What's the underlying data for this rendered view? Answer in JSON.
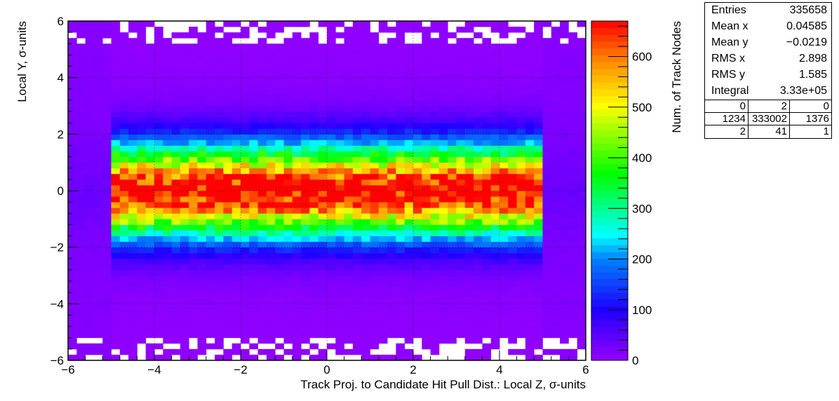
{
  "chart_data": {
    "type": "heatmap",
    "title": "",
    "xlabel": "Track Proj. to Candidate Hit Pull Dist.: Local Z, σ-units",
    "ylabel": "Local Y, σ-units",
    "zlabel": "Num. of Track Nodes",
    "xlim": [
      -6,
      6
    ],
    "ylim": [
      -6,
      6
    ],
    "zlim": [
      0,
      670
    ],
    "x_ticks": [
      "−6",
      "−4",
      "−2",
      "0",
      "2",
      "4",
      "6"
    ],
    "y_ticks": [
      "−6",
      "−4",
      "−2",
      "0",
      "2",
      "4",
      "6"
    ],
    "z_ticks": [
      "0",
      "100",
      "200",
      "300",
      "400",
      "500",
      "600"
    ],
    "grid": true,
    "bins": {
      "nx": 60,
      "ny": 60
    },
    "profile": {
      "core_z_range": [
        -5.0,
        5.0
      ],
      "peak_value": 660,
      "core_y_sigma": 1.1,
      "tail_level": 35,
      "outer_level": 10
    }
  },
  "stats": {
    "rows": [
      {
        "label": "Entries",
        "value": "335658"
      },
      {
        "label": "Mean x",
        "value": "0.04585"
      },
      {
        "label": "Mean y",
        "value": "−0.0219"
      },
      {
        "label": "RMS x",
        "value": "2.898"
      },
      {
        "label": "RMS y",
        "value": "1.585"
      },
      {
        "label": "Integral",
        "value": "3.33e+05"
      }
    ],
    "grid": [
      "0",
      "2",
      "0",
      "1234",
      "333002",
      "1376",
      "2",
      "41",
      "1"
    ]
  }
}
